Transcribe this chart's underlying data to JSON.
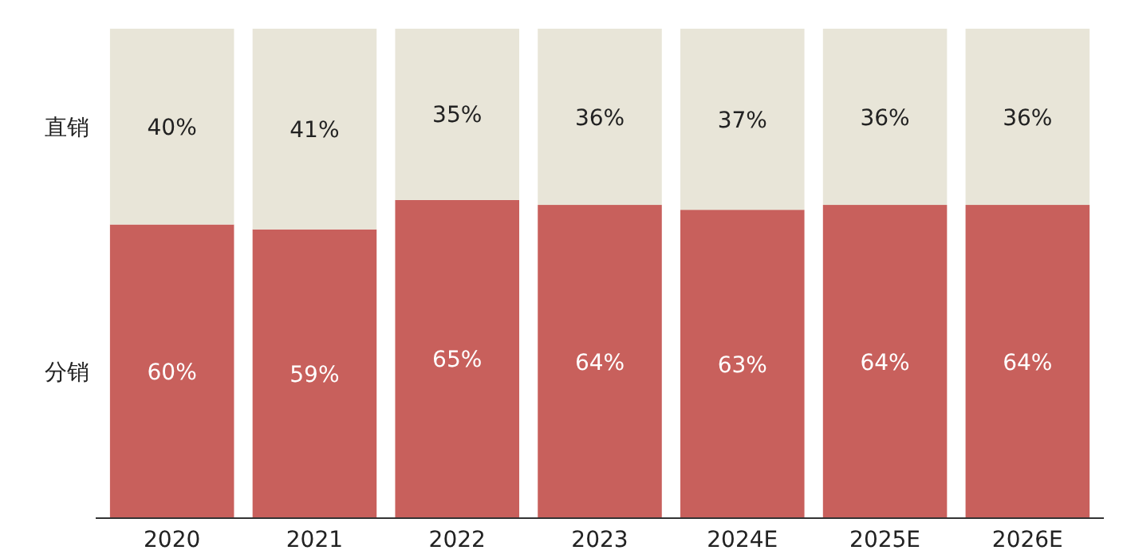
{
  "chart_data": {
    "type": "bar",
    "stacked": true,
    "categories": [
      "2020",
      "2021",
      "2022",
      "2023",
      "2024E",
      "2025E",
      "2026E"
    ],
    "series": [
      {
        "name": "分销",
        "color": "#c8605c",
        "values": [
          60,
          59,
          65,
          64,
          63,
          64,
          64
        ],
        "value_labels": [
          "60%",
          "59%",
          "65%",
          "64%",
          "63%",
          "64%",
          "64%"
        ]
      },
      {
        "name": "直销",
        "color": "#e8e5d8",
        "values": [
          40,
          41,
          35,
          36,
          37,
          36,
          36
        ],
        "value_labels": [
          "40%",
          "41%",
          "35%",
          "36%",
          "37%",
          "36%",
          "36%"
        ]
      }
    ],
    "legend": false,
    "grid": false
  }
}
